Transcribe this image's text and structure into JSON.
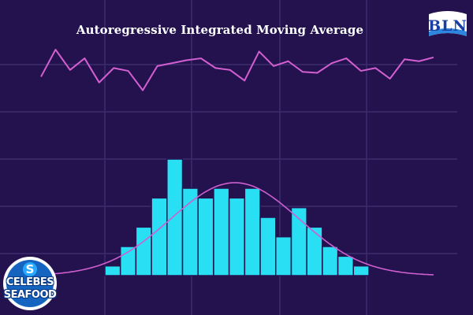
{
  "chart_data": {
    "title": "Autoregressive Integrated Moving Average",
    "line_series": {
      "type": "line",
      "color": "#d45fd0",
      "values": [
        59,
        87,
        66,
        78,
        53,
        68,
        65,
        45,
        70,
        73,
        76,
        78,
        68,
        66,
        55,
        85,
        70,
        75,
        64,
        63,
        73,
        78,
        65,
        68,
        57,
        77,
        75,
        79
      ]
    },
    "histogram": {
      "type": "bar",
      "color": "#28dff3",
      "values": [
        1,
        3,
        5,
        8,
        12,
        9,
        8,
        9,
        8,
        9,
        6,
        4,
        7,
        5,
        3,
        2,
        1
      ]
    },
    "density_curve": {
      "type": "line",
      "color": "#cf5fd0",
      "shape": "normal bell curve fitted to histogram"
    },
    "grid": true
  },
  "logos": {
    "top_right": {
      "text": "BLN",
      "bg_color": "#ffffff",
      "text_color": "#1a3fa0"
    },
    "bottom_left": {
      "line1": "CELEBES",
      "line2": "SEAFOOD",
      "ring_color": "#ffffff",
      "fill_color": "#1565c0"
    }
  }
}
